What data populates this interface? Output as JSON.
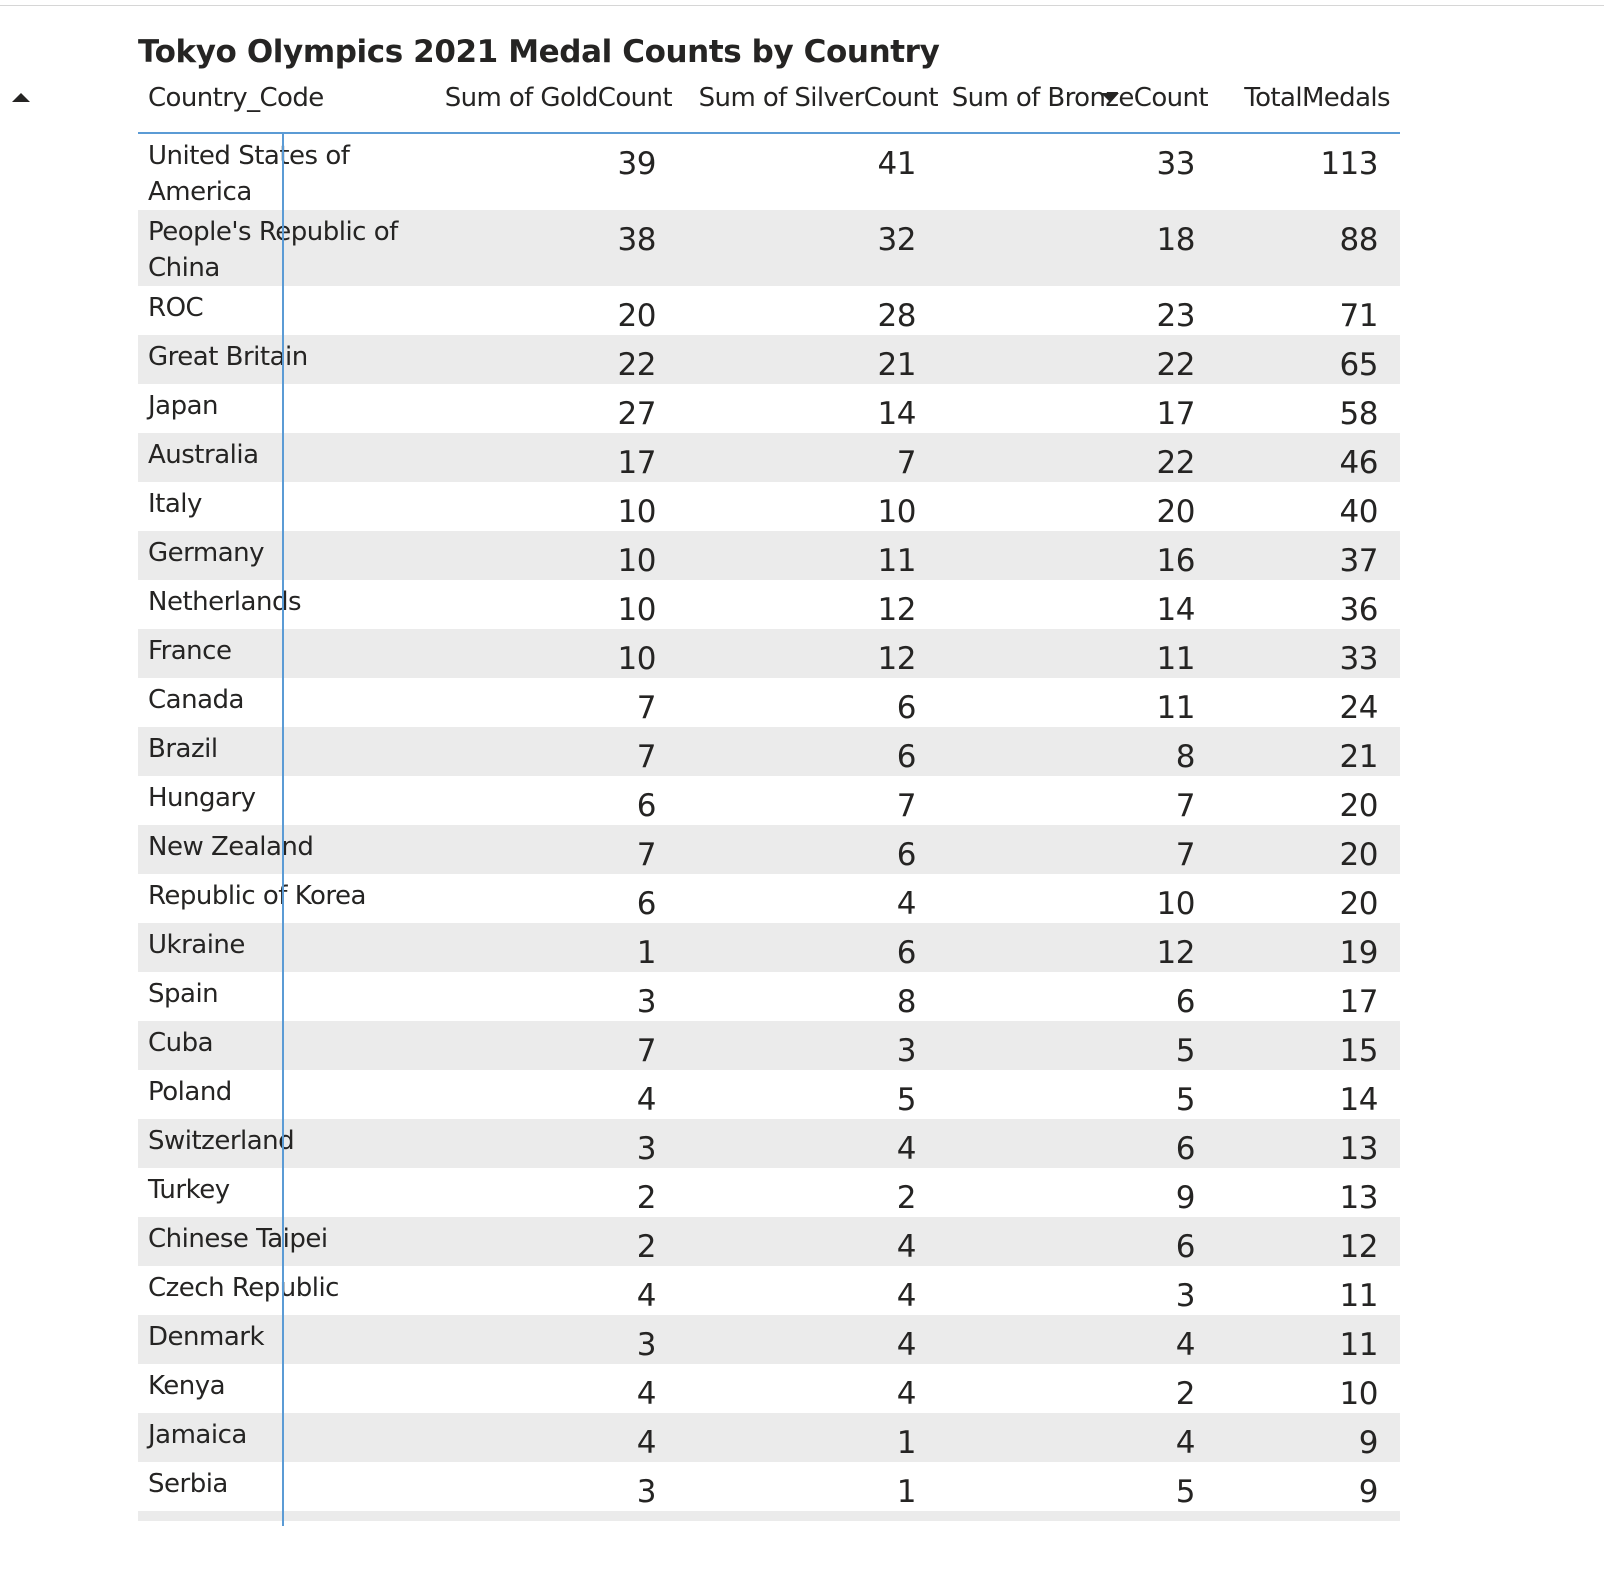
{
  "title": "Tokyo Olympics 2021 Medal Counts by Country",
  "columns": {
    "country": "Country_Code",
    "gold": "Sum of GoldCount",
    "silver": "Sum of SilverCount",
    "bronze": "Sum of BronzeCount",
    "total": "TotalMedals"
  },
  "sort": {
    "country_arrow": "up",
    "total_arrow": "down"
  },
  "rows": [
    {
      "country": "United States of America",
      "gold": "39",
      "silver": "41",
      "bronze": "33",
      "total": "113"
    },
    {
      "country": "People's Republic of China",
      "gold": "38",
      "silver": "32",
      "bronze": "18",
      "total": "88"
    },
    {
      "country": "ROC",
      "gold": "20",
      "silver": "28",
      "bronze": "23",
      "total": "71"
    },
    {
      "country": "Great Britain",
      "gold": "22",
      "silver": "21",
      "bronze": "22",
      "total": "65"
    },
    {
      "country": "Japan",
      "gold": "27",
      "silver": "14",
      "bronze": "17",
      "total": "58"
    },
    {
      "country": "Australia",
      "gold": "17",
      "silver": "7",
      "bronze": "22",
      "total": "46"
    },
    {
      "country": "Italy",
      "gold": "10",
      "silver": "10",
      "bronze": "20",
      "total": "40"
    },
    {
      "country": "Germany",
      "gold": "10",
      "silver": "11",
      "bronze": "16",
      "total": "37"
    },
    {
      "country": "Netherlands",
      "gold": "10",
      "silver": "12",
      "bronze": "14",
      "total": "36"
    },
    {
      "country": "France",
      "gold": "10",
      "silver": "12",
      "bronze": "11",
      "total": "33"
    },
    {
      "country": "Canada",
      "gold": "7",
      "silver": "6",
      "bronze": "11",
      "total": "24"
    },
    {
      "country": "Brazil",
      "gold": "7",
      "silver": "6",
      "bronze": "8",
      "total": "21"
    },
    {
      "country": "Hungary",
      "gold": "6",
      "silver": "7",
      "bronze": "7",
      "total": "20"
    },
    {
      "country": "New Zealand",
      "gold": "7",
      "silver": "6",
      "bronze": "7",
      "total": "20"
    },
    {
      "country": "Republic of Korea",
      "gold": "6",
      "silver": "4",
      "bronze": "10",
      "total": "20"
    },
    {
      "country": "Ukraine",
      "gold": "1",
      "silver": "6",
      "bronze": "12",
      "total": "19"
    },
    {
      "country": "Spain",
      "gold": "3",
      "silver": "8",
      "bronze": "6",
      "total": "17"
    },
    {
      "country": "Cuba",
      "gold": "7",
      "silver": "3",
      "bronze": "5",
      "total": "15"
    },
    {
      "country": "Poland",
      "gold": "4",
      "silver": "5",
      "bronze": "5",
      "total": "14"
    },
    {
      "country": "Switzerland",
      "gold": "3",
      "silver": "4",
      "bronze": "6",
      "total": "13"
    },
    {
      "country": "Turkey",
      "gold": "2",
      "silver": "2",
      "bronze": "9",
      "total": "13"
    },
    {
      "country": "Chinese Taipei",
      "gold": "2",
      "silver": "4",
      "bronze": "6",
      "total": "12"
    },
    {
      "country": "Czech Republic",
      "gold": "4",
      "silver": "4",
      "bronze": "3",
      "total": "11"
    },
    {
      "country": "Denmark",
      "gold": "3",
      "silver": "4",
      "bronze": "4",
      "total": "11"
    },
    {
      "country": "Kenya",
      "gold": "4",
      "silver": "4",
      "bronze": "2",
      "total": "10"
    },
    {
      "country": "Jamaica",
      "gold": "4",
      "silver": "1",
      "bronze": "4",
      "total": "9"
    },
    {
      "country": "Serbia",
      "gold": "3",
      "silver": "1",
      "bronze": "5",
      "total": "9"
    }
  ],
  "colors": {
    "accent": "#5b9bd5",
    "band": "#ebebeb",
    "text": "#252423"
  }
}
